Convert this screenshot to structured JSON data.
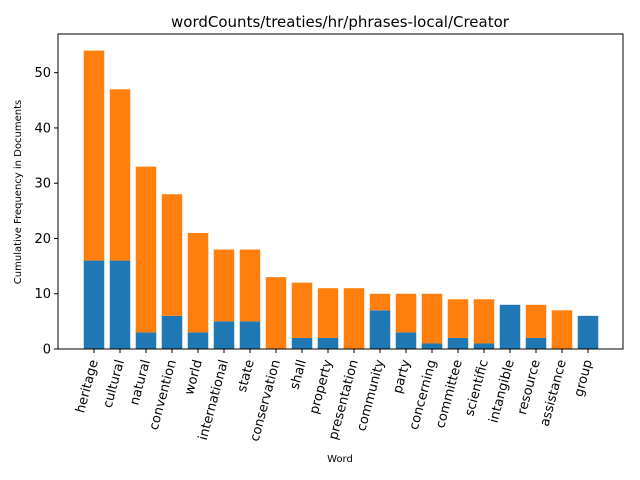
{
  "chart_data": {
    "type": "bar",
    "stacked": true,
    "title": "wordCounts/treaties/hr/phrases-local/Creator",
    "xlabel": "Word",
    "ylabel": "Cumulative Frequency in Documents",
    "ylim": [
      0,
      57
    ],
    "yticks": [
      "0",
      "10",
      "20",
      "30",
      "40",
      "50"
    ],
    "grid": false,
    "categories": [
      "heritage",
      "cultural",
      "natural",
      "convention",
      "world",
      "international",
      "state",
      "conservation",
      "shall",
      "property",
      "presentation",
      "community",
      "party",
      "concerning",
      "committee",
      "scientific",
      "intangible",
      "resource",
      "assistance",
      "group"
    ],
    "series": [
      {
        "values": [
          16,
          16,
          3,
          6,
          3,
          5,
          5,
          0,
          2,
          2,
          0,
          7,
          3,
          1,
          2,
          1,
          8,
          2,
          0,
          6
        ],
        "color": "#1f77b4"
      },
      {
        "values": [
          38,
          31,
          30,
          22,
          18,
          13,
          13,
          13,
          10,
          9,
          11,
          3,
          7,
          9,
          7,
          8,
          0,
          6,
          7,
          0
        ],
        "color": "#ff7f0e"
      }
    ]
  }
}
